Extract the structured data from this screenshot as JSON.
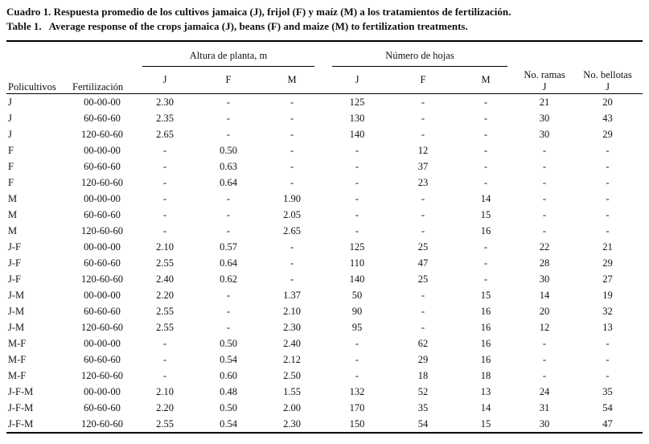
{
  "caption": {
    "es": "Cuadro 1. Respuesta promedio de los cultivos jamaica (J), frijol (F) y maíz (M) a los tratamientos de fertilización.",
    "en": "Table 1.   Average response of the crops jamaica (J), beans (F) and maize (M) to fertilization treatments."
  },
  "table": {
    "col_policultivos": "Policultivos",
    "col_fertilizacion": "Fertilización",
    "group_altura": "Altura de planta, m",
    "group_hojas": "Número de hojas",
    "sub_headers": [
      "J",
      "F",
      "M",
      "J",
      "F",
      "M"
    ],
    "ramas_header": "No. ramas",
    "ramas_sub": "J",
    "bellotas_header": "No. bellotas",
    "bellotas_sub": "J",
    "rows": [
      [
        "J",
        "00-00-00",
        "2.30",
        "-",
        "-",
        "125",
        "-",
        "-",
        "21",
        "20"
      ],
      [
        "J",
        "60-60-60",
        "2.35",
        "-",
        "-",
        "130",
        "-",
        "-",
        "30",
        "43"
      ],
      [
        "J",
        "120-60-60",
        "2.65",
        "-",
        "-",
        "140",
        "-",
        "-",
        "30",
        "29"
      ],
      [
        "F",
        "00-00-00",
        "-",
        "0.50",
        "-",
        "-",
        "12",
        "-",
        "-",
        "-"
      ],
      [
        "F",
        "60-60-60",
        "-",
        "0.63",
        "-",
        "-",
        "37",
        "-",
        "-",
        "-"
      ],
      [
        "F",
        "120-60-60",
        "-",
        "0.64",
        "-",
        "-",
        "23",
        "-",
        "-",
        "-"
      ],
      [
        "M",
        "00-00-00",
        "-",
        "-",
        "1.90",
        "-",
        "-",
        "14",
        "-",
        "-"
      ],
      [
        "M",
        "60-60-60",
        "-",
        "-",
        "2.05",
        "-",
        "-",
        "15",
        "-",
        "-"
      ],
      [
        "M",
        "120-60-60",
        "-",
        "-",
        "2.65",
        "-",
        "-",
        "16",
        "-",
        "-"
      ],
      [
        "J-F",
        "00-00-00",
        "2.10",
        "0.57",
        "-",
        "125",
        "25",
        "-",
        "22",
        "21"
      ],
      [
        "J-F",
        "60-60-60",
        "2.55",
        "0.64",
        "-",
        "110",
        "47",
        "-",
        "28",
        "29"
      ],
      [
        "J-F",
        "120-60-60",
        "2.40",
        "0.62",
        "-",
        "140",
        "25",
        "-",
        "30",
        "27"
      ],
      [
        "J-M",
        "00-00-00",
        "2.20",
        "-",
        "1.37",
        "50",
        "-",
        "15",
        "14",
        "19"
      ],
      [
        "J-M",
        "60-60-60",
        "2.55",
        "-",
        "2.10",
        "90",
        "-",
        "16",
        "20",
        "32"
      ],
      [
        "J-M",
        "120-60-60",
        "2.55",
        "-",
        "2.30",
        "95",
        "-",
        "16",
        "12",
        "13"
      ],
      [
        "M-F",
        "00-00-00",
        "-",
        "0.50",
        "2.40",
        "-",
        "62",
        "16",
        "-",
        "-"
      ],
      [
        "M-F",
        "60-60-60",
        "-",
        "0.54",
        "2.12",
        "-",
        "29",
        "16",
        "-",
        "-"
      ],
      [
        "M-F",
        "120-60-60",
        "-",
        "0.60",
        "2.50",
        "-",
        "18",
        "18",
        "-",
        "-"
      ],
      [
        "J-F-M",
        "00-00-00",
        "2.10",
        "0.48",
        "1.55",
        "132",
        "52",
        "13",
        "24",
        "35"
      ],
      [
        "J-F-M",
        "60-60-60",
        "2.20",
        "0.50",
        "2.00",
        "170",
        "35",
        "14",
        "31",
        "54"
      ],
      [
        "J-F-M",
        "120-60-60",
        "2.55",
        "0.54",
        "2.30",
        "150",
        "54",
        "15",
        "30",
        "47"
      ]
    ]
  }
}
